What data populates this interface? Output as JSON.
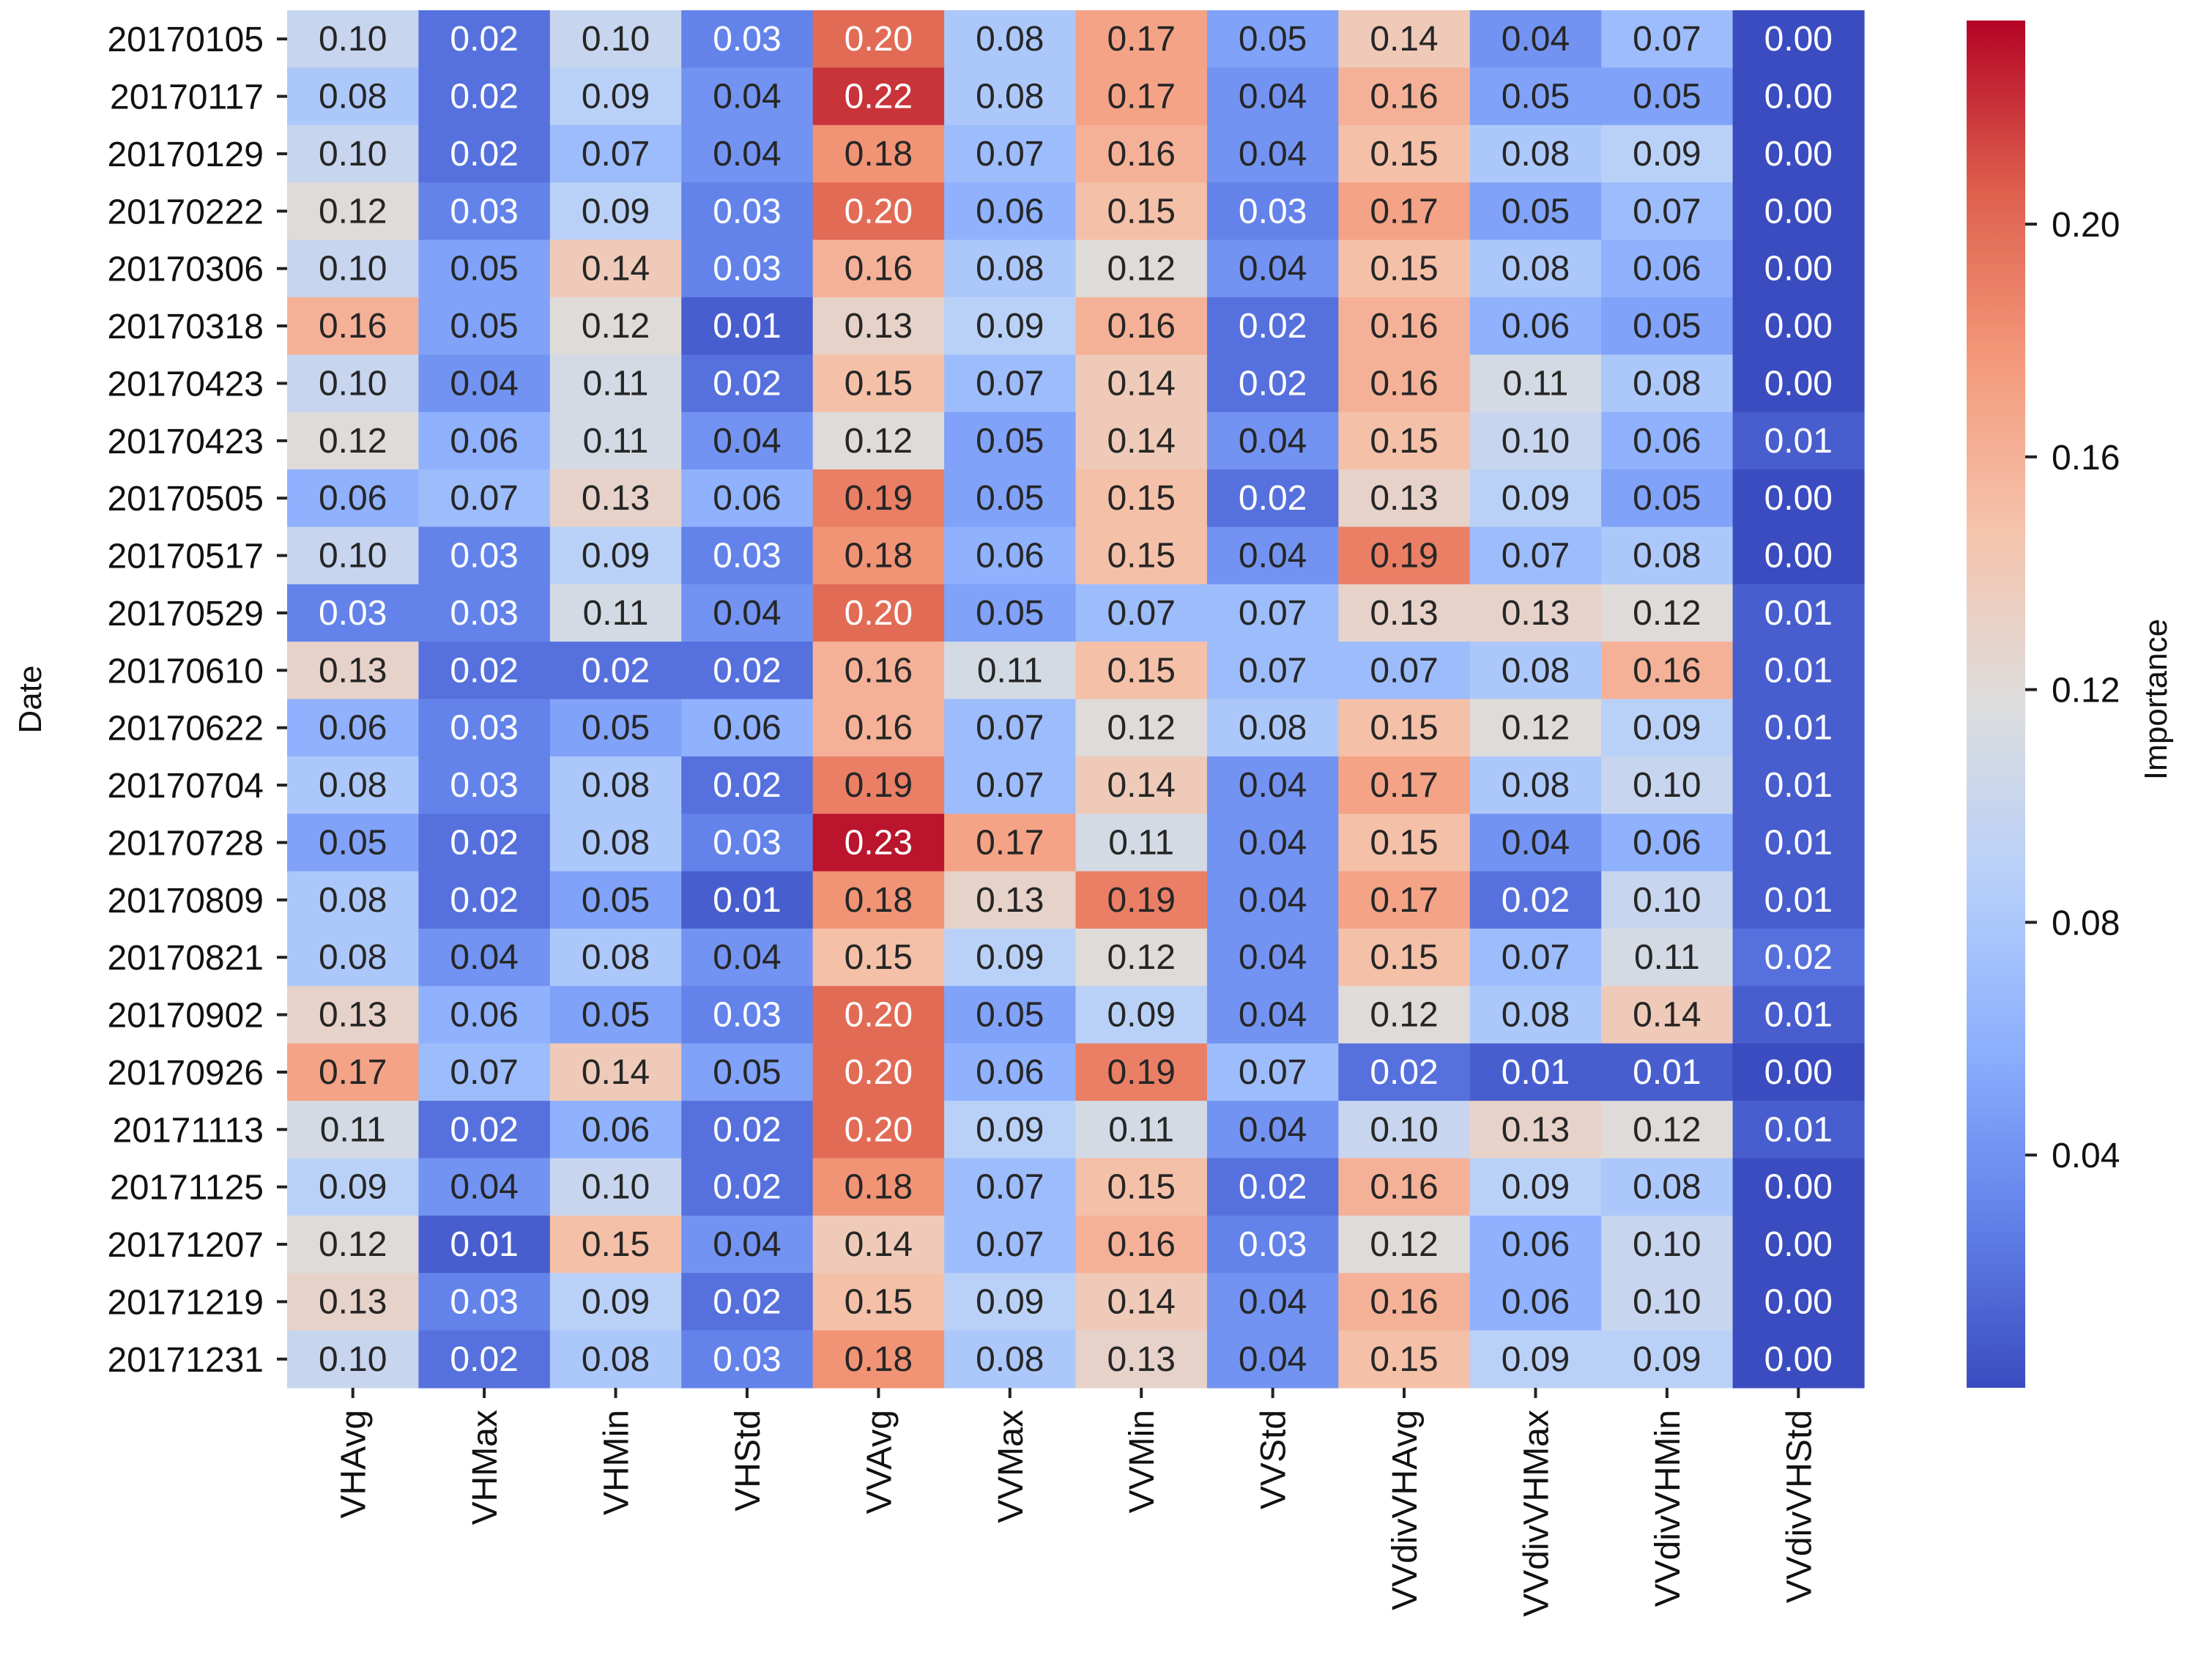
{
  "chart_data": {
    "type": "heatmap",
    "title": "",
    "ylabel": "Date",
    "xlabel": "",
    "colorbar_label": "Importance",
    "colormap": "coolwarm",
    "color_range": [
      0.0,
      0.235
    ],
    "colorbar_ticks": [
      "0.20",
      "0.16",
      "0.12",
      "0.08",
      "0.04"
    ],
    "colorbar_tick_values": [
      0.2,
      0.16,
      0.12,
      0.08,
      0.04
    ],
    "columns": [
      "VHAvg",
      "VHMax",
      "VHMin",
      "VHStd",
      "VVAvg",
      "VVMax",
      "VVMin",
      "VVStd",
      "VVdivVHAvg",
      "VVdivVHMax",
      "VVdivVHMin",
      "VVdivVHStd"
    ],
    "rows": [
      "20170105",
      "20170117",
      "20170129",
      "20170222",
      "20170306",
      "20170318",
      "20170423",
      "20170423",
      "20170505",
      "20170517",
      "20170529",
      "20170610",
      "20170622",
      "20170704",
      "20170728",
      "20170809",
      "20170821",
      "20170902",
      "20170926",
      "20171113",
      "20171125",
      "20171207",
      "20171219",
      "20171231"
    ],
    "values": [
      [
        "0.10",
        "0.02",
        "0.10",
        "0.03",
        "0.20",
        "0.08",
        "0.17",
        "0.05",
        "0.14",
        "0.04",
        "0.07",
        "0.00"
      ],
      [
        "0.08",
        "0.02",
        "0.09",
        "0.04",
        "0.22",
        "0.08",
        "0.17",
        "0.04",
        "0.16",
        "0.05",
        "0.05",
        "0.00"
      ],
      [
        "0.10",
        "0.02",
        "0.07",
        "0.04",
        "0.18",
        "0.07",
        "0.16",
        "0.04",
        "0.15",
        "0.08",
        "0.09",
        "0.00"
      ],
      [
        "0.12",
        "0.03",
        "0.09",
        "0.03",
        "0.20",
        "0.06",
        "0.15",
        "0.03",
        "0.17",
        "0.05",
        "0.07",
        "0.00"
      ],
      [
        "0.10",
        "0.05",
        "0.14",
        "0.03",
        "0.16",
        "0.08",
        "0.12",
        "0.04",
        "0.15",
        "0.08",
        "0.06",
        "0.00"
      ],
      [
        "0.16",
        "0.05",
        "0.12",
        "0.01",
        "0.13",
        "0.09",
        "0.16",
        "0.02",
        "0.16",
        "0.06",
        "0.05",
        "0.00"
      ],
      [
        "0.10",
        "0.04",
        "0.11",
        "0.02",
        "0.15",
        "0.07",
        "0.14",
        "0.02",
        "0.16",
        "0.11",
        "0.08",
        "0.00"
      ],
      [
        "0.12",
        "0.06",
        "0.11",
        "0.04",
        "0.12",
        "0.05",
        "0.14",
        "0.04",
        "0.15",
        "0.10",
        "0.06",
        "0.01"
      ],
      [
        "0.06",
        "0.07",
        "0.13",
        "0.06",
        "0.19",
        "0.05",
        "0.15",
        "0.02",
        "0.13",
        "0.09",
        "0.05",
        "0.00"
      ],
      [
        "0.10",
        "0.03",
        "0.09",
        "0.03",
        "0.18",
        "0.06",
        "0.15",
        "0.04",
        "0.19",
        "0.07",
        "0.08",
        "0.00"
      ],
      [
        "0.03",
        "0.03",
        "0.11",
        "0.04",
        "0.20",
        "0.05",
        "0.07",
        "0.07",
        "0.13",
        "0.13",
        "0.12",
        "0.01"
      ],
      [
        "0.13",
        "0.02",
        "0.02",
        "0.02",
        "0.16",
        "0.11",
        "0.15",
        "0.07",
        "0.07",
        "0.08",
        "0.16",
        "0.01"
      ],
      [
        "0.06",
        "0.03",
        "0.05",
        "0.06",
        "0.16",
        "0.07",
        "0.12",
        "0.08",
        "0.15",
        "0.12",
        "0.09",
        "0.01"
      ],
      [
        "0.08",
        "0.03",
        "0.08",
        "0.02",
        "0.19",
        "0.07",
        "0.14",
        "0.04",
        "0.17",
        "0.08",
        "0.10",
        "0.01"
      ],
      [
        "0.05",
        "0.02",
        "0.08",
        "0.03",
        "0.23",
        "0.17",
        "0.11",
        "0.04",
        "0.15",
        "0.04",
        "0.06",
        "0.01"
      ],
      [
        "0.08",
        "0.02",
        "0.05",
        "0.01",
        "0.18",
        "0.13",
        "0.19",
        "0.04",
        "0.17",
        "0.02",
        "0.10",
        "0.01"
      ],
      [
        "0.08",
        "0.04",
        "0.08",
        "0.04",
        "0.15",
        "0.09",
        "0.12",
        "0.04",
        "0.15",
        "0.07",
        "0.11",
        "0.02"
      ],
      [
        "0.13",
        "0.06",
        "0.05",
        "0.03",
        "0.20",
        "0.05",
        "0.09",
        "0.04",
        "0.12",
        "0.08",
        "0.14",
        "0.01"
      ],
      [
        "0.17",
        "0.07",
        "0.14",
        "0.05",
        "0.20",
        "0.06",
        "0.19",
        "0.07",
        "0.02",
        "0.01",
        "0.01",
        "0.00"
      ],
      [
        "0.11",
        "0.02",
        "0.06",
        "0.02",
        "0.20",
        "0.09",
        "0.11",
        "0.04",
        "0.10",
        "0.13",
        "0.12",
        "0.01"
      ],
      [
        "0.09",
        "0.04",
        "0.10",
        "0.02",
        "0.18",
        "0.07",
        "0.15",
        "0.02",
        "0.16",
        "0.09",
        "0.08",
        "0.00"
      ],
      [
        "0.12",
        "0.01",
        "0.15",
        "0.04",
        "0.14",
        "0.07",
        "0.16",
        "0.03",
        "0.12",
        "0.06",
        "0.10",
        "0.00"
      ],
      [
        "0.13",
        "0.03",
        "0.09",
        "0.02",
        "0.15",
        "0.09",
        "0.14",
        "0.04",
        "0.16",
        "0.06",
        "0.10",
        "0.00"
      ],
      [
        "0.10",
        "0.02",
        "0.08",
        "0.03",
        "0.18",
        "0.08",
        "0.13",
        "0.04",
        "0.15",
        "0.09",
        "0.09",
        "0.00"
      ]
    ]
  }
}
